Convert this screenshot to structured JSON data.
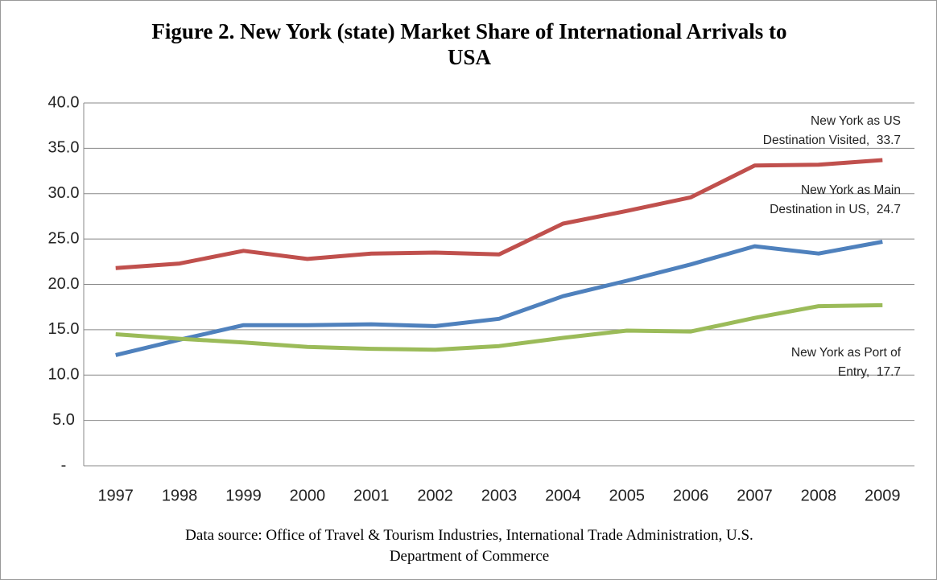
{
  "chart_data": {
    "type": "line",
    "title": "Figure 2. New York (state) Market Share of International Arrivals to USA",
    "source": "Data source: Office of Travel & Tourism Industries, International Trade Administration, U.S. Department of Commerce",
    "categories": [
      "1997",
      "1998",
      "1999",
      "2000",
      "2001",
      "2002",
      "2003",
      "2004",
      "2005",
      "2006",
      "2007",
      "2008",
      "2009"
    ],
    "series": [
      {
        "name": "New York as US Destination Visited,",
        "color": "#c0504d",
        "values": [
          21.8,
          22.3,
          23.7,
          22.8,
          23.4,
          23.5,
          23.3,
          26.7,
          28.1,
          29.6,
          33.1,
          33.2,
          33.7
        ],
        "value_labels": {
          "12": "33.7"
        }
      },
      {
        "name": "New York as Main Destination in US,",
        "color": "#4f81bd",
        "values": [
          12.2,
          13.9,
          15.5,
          15.5,
          15.6,
          15.4,
          16.2,
          18.7,
          20.4,
          22.2,
          24.2,
          23.4,
          24.7
        ],
        "value_labels": {
          "12": "24.7"
        }
      },
      {
        "name": "New York as Port of Entry,",
        "color": "#9bbb59",
        "values": [
          14.5,
          14.0,
          13.6,
          13.1,
          12.9,
          12.8,
          13.2,
          14.1,
          14.9,
          14.8,
          16.3,
          17.6,
          17.7
        ],
        "value_labels": {
          "12": "17.7"
        }
      }
    ],
    "ylim": [
      0,
      40
    ],
    "yticks": [
      {
        "value": 0,
        "label": "-"
      },
      {
        "value": 5,
        "label": "5.0"
      },
      {
        "value": 10,
        "label": "10.0"
      },
      {
        "value": 15,
        "label": "15.0"
      },
      {
        "value": 20,
        "label": "20.0"
      },
      {
        "value": 25,
        "label": "25.0"
      },
      {
        "value": 30,
        "label": "30.0"
      },
      {
        "value": 35,
        "label": "35.0"
      },
      {
        "value": 40,
        "label": "40.0"
      }
    ],
    "grid": true
  }
}
